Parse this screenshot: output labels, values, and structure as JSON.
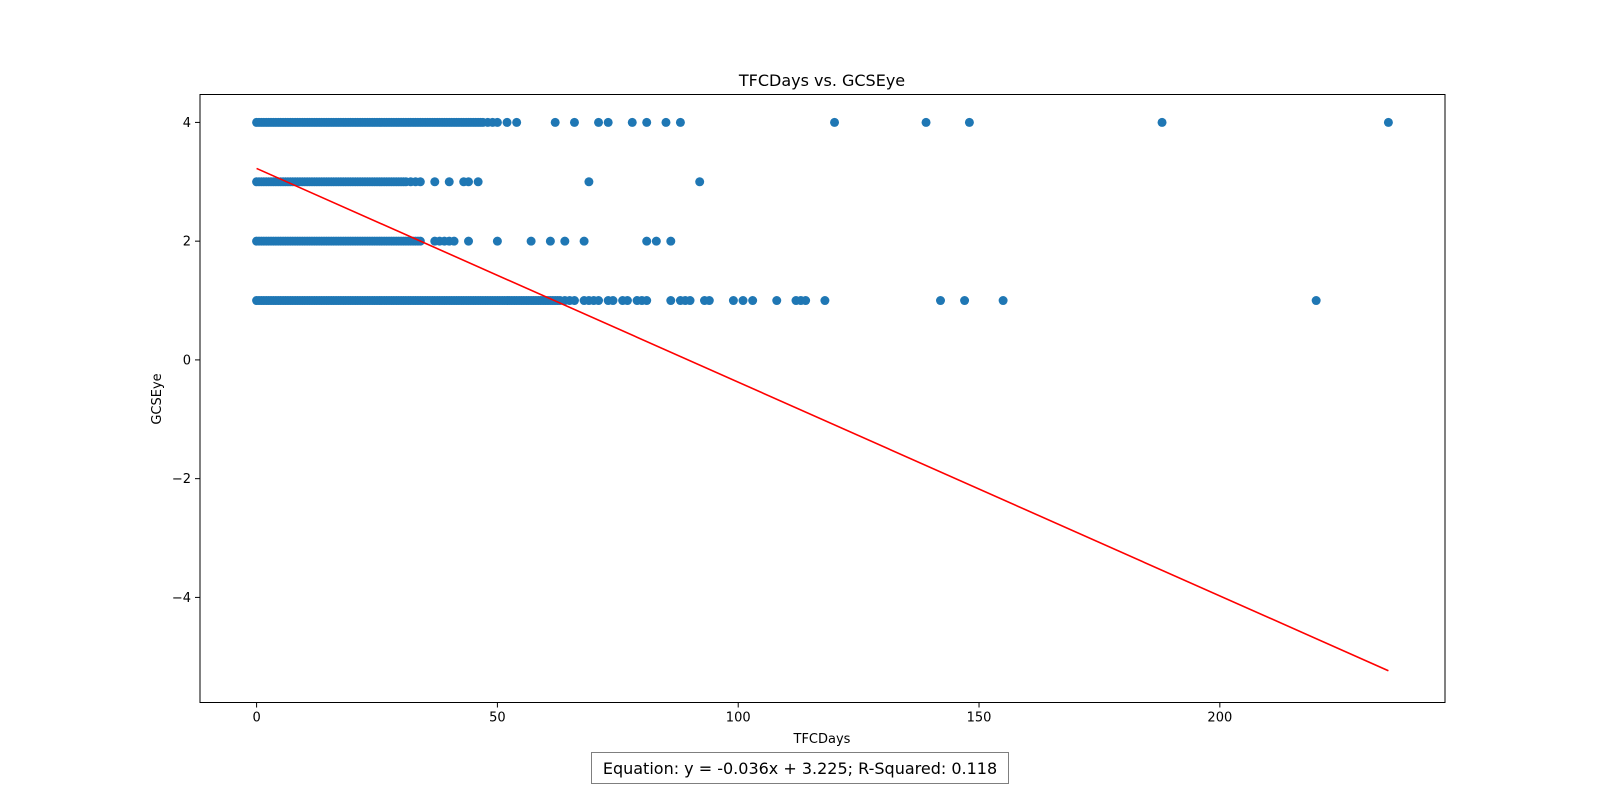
{
  "chart_data": {
    "type": "scatter",
    "title": "TFCDays vs. GCSEye",
    "xlabel": "TFCDays",
    "ylabel": "GCSEye",
    "xlim": [
      -11.75,
      246.75
    ],
    "ylim": [
      -5.77,
      4.47
    ],
    "xticks": [
      0,
      50,
      100,
      150,
      200
    ],
    "yticks": [
      -4,
      -2,
      0,
      2,
      4
    ],
    "xtick_labels": [
      "0",
      "50",
      "100",
      "150",
      "200"
    ],
    "ytick_labels": [
      "−4",
      "−2",
      "0",
      "2",
      "4"
    ],
    "grid": false,
    "marker_color": "#1f77b4",
    "line_color": "#ff0000",
    "series": [
      {
        "values_by_level": [
          {
            "y": 4,
            "dense_x_range": [
              0,
              47
            ],
            "x": [
              48,
              49,
              50,
              52,
              54,
              62,
              66,
              71,
              73,
              78,
              81,
              85,
              88,
              120,
              139,
              148,
              188,
              235
            ]
          },
          {
            "y": 3,
            "dense_x_range": [
              0,
              31
            ],
            "x": [
              32,
              33,
              34,
              37,
              40,
              43,
              44,
              46,
              69,
              92
            ]
          },
          {
            "y": 2,
            "dense_x_range": [
              0,
              34
            ],
            "x": [
              37,
              38,
              39,
              40,
              41,
              44,
              50,
              57,
              61,
              64,
              68,
              81,
              83,
              86
            ]
          },
          {
            "y": 1,
            "dense_x_range": [
              0,
              63
            ],
            "x": [
              64,
              65,
              66,
              68,
              69,
              70,
              71,
              73,
              74,
              76,
              77,
              79,
              80,
              81,
              86,
              88,
              89,
              90,
              93,
              94,
              99,
              101,
              103,
              108,
              112,
              113,
              114,
              118,
              142,
              147,
              155,
              220
            ]
          }
        ]
      }
    ],
    "regression": {
      "slope": -0.036,
      "intercept": 3.225,
      "x_range": [
        0,
        235
      ],
      "r_squared": 0.118
    },
    "annotation": "Equation: y = -0.036x + 3.225; R-Squared: 0.118"
  }
}
